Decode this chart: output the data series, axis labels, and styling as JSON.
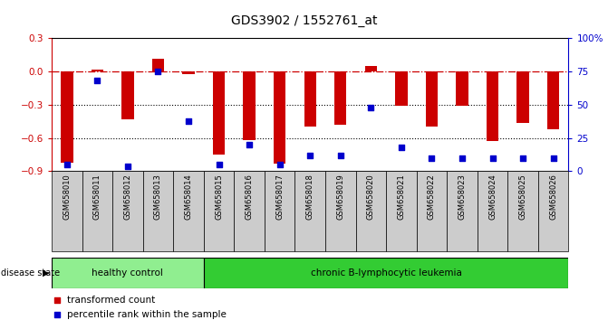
{
  "title": "GDS3902 / 1552761_at",
  "samples": [
    "GSM658010",
    "GSM658011",
    "GSM658012",
    "GSM658013",
    "GSM658014",
    "GSM658015",
    "GSM658016",
    "GSM658017",
    "GSM658018",
    "GSM658019",
    "GSM658020",
    "GSM658021",
    "GSM658022",
    "GSM658023",
    "GSM658024",
    "GSM658025",
    "GSM658026"
  ],
  "bar_values": [
    -0.82,
    0.02,
    -0.43,
    0.12,
    -0.02,
    -0.75,
    -0.62,
    -0.83,
    -0.5,
    -0.48,
    0.05,
    -0.31,
    -0.5,
    -0.31,
    -0.63,
    -0.46,
    -0.52
  ],
  "percentile_values": [
    5,
    68,
    4,
    75,
    38,
    5,
    20,
    5,
    12,
    12,
    48,
    18,
    10,
    10,
    10,
    10,
    10
  ],
  "healthy_count": 5,
  "bar_color": "#CC0000",
  "percentile_color": "#0000CC",
  "ylim_left": [
    -0.9,
    0.3
  ],
  "ylim_right": [
    0,
    100
  ],
  "y_ticks_left": [
    0.3,
    0.0,
    -0.3,
    -0.6,
    -0.9
  ],
  "y_ticks_right": [
    100,
    75,
    50,
    25,
    0
  ],
  "y_ticks_right_labels": [
    "100%",
    "75",
    "50",
    "25",
    "0"
  ],
  "hline_color": "#CC0000",
  "dotline_color": "#000000",
  "healthy_label": "healthy control",
  "disease_label": "chronic B-lymphocytic leukemia",
  "healthy_bg": "#90EE90",
  "disease_bg": "#33CC33",
  "sample_bg": "#CCCCCC",
  "legend_bar_label": "transformed count",
  "legend_pct_label": "percentile rank within the sample",
  "disease_state_label": "disease state"
}
